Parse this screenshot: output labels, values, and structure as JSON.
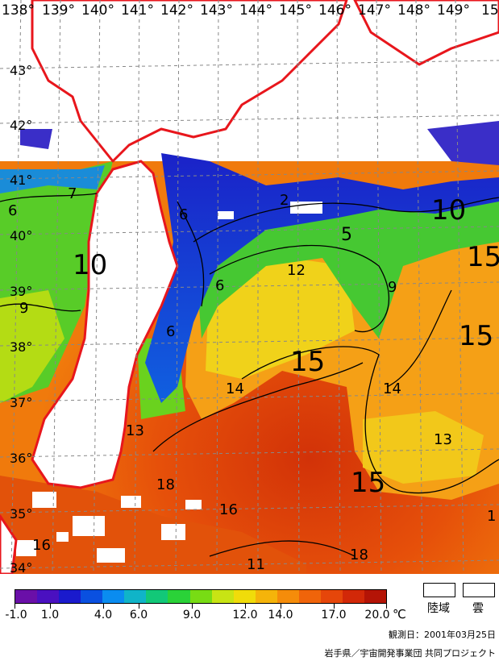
{
  "map": {
    "lon_labels": [
      "138°",
      "139°",
      "140°",
      "141°",
      "142°",
      "143°",
      "144°",
      "145°",
      "146°",
      "147°",
      "148°",
      "149°",
      "15"
    ],
    "lat_labels": [
      "43°",
      "42°",
      "41°",
      "40°",
      "39°",
      "38°",
      "37°",
      "36°",
      "35°",
      "34°"
    ],
    "isotherm_labels": [
      "7",
      "6",
      "10",
      "9",
      "6",
      "6",
      "6",
      "2",
      "5",
      "12",
      "9",
      "10",
      "15",
      "15",
      "15",
      "14",
      "14",
      "13",
      "13",
      "18",
      "16",
      "15",
      "11",
      "16",
      "18",
      "1"
    ],
    "colors": {
      "coast": "#e8161c",
      "land": "#ffffff",
      "grid": "#888888"
    }
  },
  "legend": {
    "tick_labels": [
      "-1.0",
      "1.0",
      "4.0",
      "6.0",
      "9.0",
      "12.0",
      "14.0",
      "17.0",
      "20.0"
    ],
    "unit": "℃",
    "colors": [
      "#6a0fa8",
      "#4a10c0",
      "#1a1acd",
      "#0a50e0",
      "#0a8cf0",
      "#10b4c8",
      "#12c878",
      "#2ad238",
      "#78dc14",
      "#c8e414",
      "#f0dc0a",
      "#f5b40a",
      "#f58c0a",
      "#f0640a",
      "#e6460a",
      "#d22808",
      "#b41406"
    ]
  },
  "key": {
    "land": "陸域",
    "cloud": "雲"
  },
  "observation_date": "観測日：2001年03月25日",
  "credit": "岩手県／宇宙開発事業団 共同プロジェクト"
}
